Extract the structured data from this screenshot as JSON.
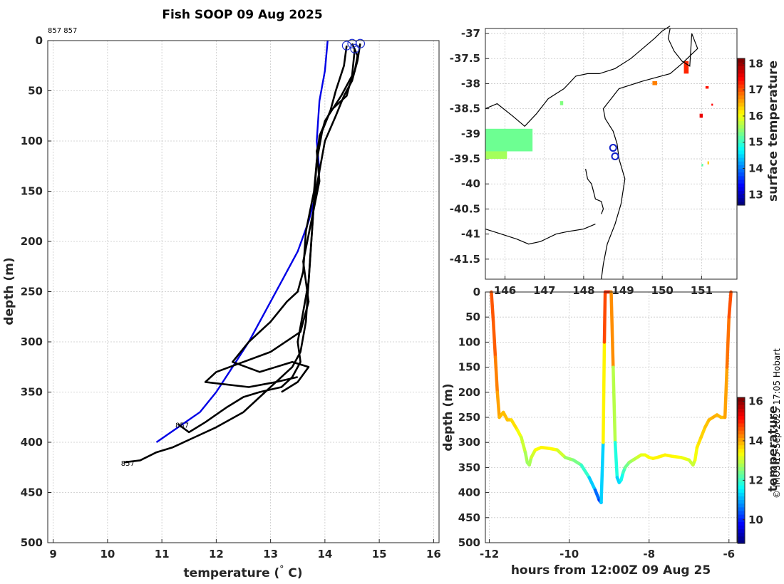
{
  "title": "Fish SOOP 09 Aug 2025",
  "credit": "© IMOS 15-Sep-2025 17:05 Hobart",
  "colors": {
    "profile": "#000000",
    "climatology": "#0000e6",
    "grid": "#c8c8c8"
  },
  "chart_data": [
    {
      "id": "profile",
      "type": "line",
      "xlabel": "temperature (° C)",
      "ylabel": "depth (m)",
      "xlim": [
        8.9,
        16.1
      ],
      "ylim": [
        0,
        500
      ],
      "y_reversed": true,
      "xticks": [
        9,
        10,
        11,
        12,
        13,
        14,
        15,
        16
      ],
      "yticks": [
        0,
        50,
        100,
        150,
        200,
        250,
        300,
        350,
        400,
        450,
        500
      ],
      "header_labels": [
        "857",
        "857"
      ],
      "series": [
        {
          "name": "climatology",
          "color": "#0000e6",
          "x": [
            14.05,
            14.0,
            13.9,
            13.85,
            13.9,
            13.85,
            13.7,
            13.5,
            13.2,
            12.9,
            12.6,
            12.3,
            12.0,
            11.7,
            11.3,
            10.9
          ],
          "y": [
            0,
            30,
            60,
            100,
            130,
            150,
            180,
            210,
            240,
            270,
            300,
            325,
            350,
            370,
            385,
            400
          ]
        },
        {
          "name": "cast-1",
          "color": "#000000",
          "end_label": "857",
          "x": [
            14.5,
            14.6,
            14.55,
            14.45,
            14.4,
            14.1,
            13.95,
            13.85,
            13.8,
            13.75,
            13.7,
            13.6,
            13.5,
            13.55,
            13.4,
            13.2,
            12.8,
            12.5,
            12.2,
            11.8,
            11.5,
            11.3
          ],
          "y": [
            3,
            15,
            30,
            45,
            55,
            70,
            90,
            120,
            160,
            200,
            240,
            270,
            300,
            320,
            335,
            345,
            350,
            355,
            365,
            380,
            390,
            382
          ]
        },
        {
          "name": "cast-2",
          "color": "#000000",
          "end_label": "857",
          "x": [
            14.65,
            14.6,
            14.5,
            14.35,
            14.2,
            14.0,
            13.9,
            13.8,
            13.75,
            13.7,
            13.65,
            13.55,
            13.4,
            13.1,
            12.8,
            12.5,
            12.0,
            11.6,
            11.2,
            10.9,
            10.6,
            10.3
          ],
          "y": [
            3,
            20,
            40,
            55,
            75,
            100,
            130,
            160,
            200,
            240,
            280,
            310,
            325,
            340,
            355,
            370,
            385,
            395,
            405,
            410,
            418,
            420
          ]
        },
        {
          "name": "cast-3",
          "color": "#000000",
          "x": [
            14.4,
            14.35,
            14.2,
            14.1,
            13.9,
            13.85,
            13.8,
            13.65,
            13.6,
            13.5,
            13.3,
            13.0,
            12.6,
            12.3,
            12.8,
            13.4,
            13.7,
            13.5,
            13.2
          ],
          "y": [
            5,
            25,
            50,
            70,
            95,
            120,
            150,
            190,
            230,
            250,
            260,
            280,
            300,
            320,
            330,
            320,
            325,
            340,
            350
          ]
        },
        {
          "name": "cast-4",
          "color": "#000000",
          "x": [
            14.55,
            14.5,
            14.3,
            14.0,
            13.85,
            13.9,
            13.75,
            13.6,
            13.7,
            13.55,
            13.0,
            12.5,
            12.0,
            11.8,
            12.6,
            13.1,
            13.5
          ],
          "y": [
            8,
            35,
            55,
            80,
            110,
            140,
            180,
            220,
            260,
            290,
            310,
            320,
            330,
            340,
            345,
            340,
            335
          ]
        }
      ]
    },
    {
      "id": "map",
      "type": "scatter",
      "xlabel": "",
      "ylabel": "",
      "xlim": [
        145.5,
        151.9
      ],
      "ylim": [
        -41.9,
        -36.9
      ],
      "xticks": [
        146,
        147,
        148,
        149,
        150,
        151
      ],
      "yticks": [
        -37,
        -37.5,
        -38,
        -38.5,
        -39,
        -39.5,
        -40,
        -40.5,
        -41,
        -41.5
      ],
      "colorbar": {
        "label": "surface temperature",
        "range": [
          12.6,
          18.2
        ],
        "ticks": [
          13,
          14,
          15,
          16,
          17,
          18
        ]
      },
      "coastlines": [
        {
          "name": "victoria-coast",
          "lon": [
            145.5,
            145.8,
            146.2,
            146.5,
            146.8,
            147.1,
            147.5,
            147.8,
            148.1,
            148.4,
            148.8,
            149.2,
            149.5,
            149.8,
            150.0,
            150.1,
            150.2
          ],
          "lat": [
            -38.5,
            -38.4,
            -38.65,
            -38.85,
            -38.6,
            -38.3,
            -38.1,
            -37.85,
            -37.8,
            -37.8,
            -37.7,
            -37.5,
            -37.3,
            -37.1,
            -36.95,
            -36.9,
            -36.85
          ]
        },
        {
          "name": "east-coast",
          "lon": [
            150.2,
            150.15,
            150.3,
            150.5,
            150.7,
            150.75
          ],
          "lat": [
            -36.9,
            -37.1,
            -37.35,
            -37.55,
            -37.65,
            -37.0
          ]
        },
        {
          "name": "boundary-east",
          "lon": [
            150.75,
            150.9,
            150.5,
            150.2,
            149.5,
            148.9,
            148.5,
            148.55,
            148.75,
            148.85,
            148.9,
            149.05,
            148.95,
            148.8,
            148.6,
            148.5,
            148.45
          ],
          "lat": [
            -37.0,
            -37.3,
            -37.6,
            -37.8,
            -37.95,
            -38.1,
            -38.5,
            -38.7,
            -38.95,
            -39.2,
            -39.5,
            -39.9,
            -40.4,
            -40.8,
            -41.2,
            -41.6,
            -41.9
          ]
        },
        {
          "name": "boundary-west",
          "lon": [
            145.5,
            145.9,
            146.3,
            146.6,
            146.9,
            147.3,
            147.6,
            148.0,
            148.3
          ],
          "lat": [
            -40.9,
            -41.0,
            -41.1,
            -41.2,
            -41.15,
            -41.0,
            -40.95,
            -40.9,
            -40.8
          ]
        },
        {
          "name": "islands-line",
          "lon": [
            148.05,
            148.1,
            148.2,
            148.25,
            148.3,
            148.45,
            148.5,
            148.45
          ],
          "lat": [
            -39.7,
            -39.9,
            -40.0,
            -40.15,
            -40.3,
            -40.35,
            -40.5,
            -40.6
          ]
        }
      ],
      "markers": [
        {
          "lon": 148.75,
          "lat": -39.28
        },
        {
          "lon": 148.8,
          "lat": -39.45
        }
      ],
      "sst_patches": [
        {
          "lon": 145.5,
          "lat": -38.9,
          "w": 1.2,
          "h": 0.45,
          "value": 15.3
        },
        {
          "lon": 145.5,
          "lat": -39.35,
          "w": 0.55,
          "h": 0.15,
          "value": 15.6
        },
        {
          "lon": 147.4,
          "lat": -38.35,
          "w": 0.08,
          "h": 0.08,
          "value": 15.4
        },
        {
          "lon": 149.75,
          "lat": -37.95,
          "w": 0.12,
          "h": 0.08,
          "value": 16.8
        },
        {
          "lon": 150.55,
          "lat": -37.55,
          "w": 0.12,
          "h": 0.25,
          "value": 17.3
        },
        {
          "lon": 151.1,
          "lat": -38.05,
          "w": 0.08,
          "h": 0.05,
          "value": 17.4
        },
        {
          "lon": 150.95,
          "lat": -38.6,
          "w": 0.08,
          "h": 0.08,
          "value": 17.6
        },
        {
          "lon": 151.25,
          "lat": -38.4,
          "w": 0.04,
          "h": 0.04,
          "value": 17.5
        },
        {
          "lon": 151.15,
          "lat": -39.55,
          "w": 0.04,
          "h": 0.06,
          "value": 16.4
        },
        {
          "lon": 151.0,
          "lat": -39.6,
          "w": 0.04,
          "h": 0.05,
          "value": 15.2
        }
      ]
    },
    {
      "id": "track",
      "type": "scatter",
      "xlabel": "hours from 12:00Z 09 Aug 25",
      "ylabel": "depth (m)",
      "xlim": [
        -12.1,
        -5.8
      ],
      "ylim": [
        0,
        500
      ],
      "y_reversed": true,
      "xticks": [
        -12,
        -10,
        -8,
        -6
      ],
      "yticks": [
        0,
        50,
        100,
        150,
        200,
        250,
        300,
        350,
        400,
        450,
        500
      ],
      "colorbar": {
        "label": "temperature",
        "range": [
          8.8,
          16.2
        ],
        "ticks": [
          10,
          12,
          14,
          16
        ]
      },
      "x": [
        -11.95,
        -11.9,
        -11.85,
        -11.8,
        -11.75,
        -11.7,
        -11.65,
        -11.55,
        -11.45,
        -11.3,
        -11.2,
        -11.1,
        -11.05,
        -11.0,
        -10.95,
        -10.85,
        -10.7,
        -10.5,
        -10.3,
        -10.1,
        -9.9,
        -9.7,
        -9.5,
        -9.35,
        -9.25,
        -9.2,
        -9.15,
        -9.12,
        -9.1,
        -8.95,
        -8.9,
        -8.85,
        -8.8,
        -8.75,
        -8.7,
        -8.65,
        -8.6,
        -8.5,
        -8.4,
        -8.3,
        -8.2,
        -8.1,
        -8.0,
        -7.9,
        -7.8,
        -7.6,
        -7.4,
        -7.2,
        -7.0,
        -6.9,
        -6.85,
        -6.8,
        -6.75,
        -6.7,
        -6.6,
        -6.5,
        -6.4,
        -6.3,
        -6.2,
        -6.1,
        -6.05,
        -6.0,
        -5.95
      ],
      "y": [
        0,
        60,
        130,
        200,
        250,
        245,
        240,
        255,
        255,
        275,
        290,
        320,
        340,
        345,
        330,
        315,
        310,
        312,
        315,
        330,
        335,
        345,
        370,
        395,
        415,
        420,
        300,
        100,
        0,
        0,
        150,
        300,
        370,
        380,
        375,
        360,
        350,
        340,
        335,
        330,
        325,
        325,
        330,
        332,
        330,
        325,
        328,
        330,
        335,
        345,
        335,
        310,
        300,
        290,
        270,
        255,
        250,
        245,
        250,
        250,
        150,
        50,
        0
      ],
      "values": [
        14.6,
        14.7,
        14.5,
        14.2,
        14.0,
        13.9,
        13.9,
        13.9,
        13.8,
        13.5,
        13.2,
        12.9,
        12.7,
        12.7,
        12.9,
        13.3,
        13.5,
        13.5,
        13.4,
        12.8,
        12.6,
        12.3,
        11.6,
        10.8,
        10.2,
        10.0,
        12.5,
        14.5,
        15.0,
        15.0,
        13.5,
        12.3,
        11.3,
        11.2,
        11.5,
        11.9,
        12.2,
        12.6,
        12.8,
        13.0,
        13.2,
        13.3,
        13.4,
        13.5,
        13.5,
        13.5,
        13.5,
        13.4,
        13.2,
        12.9,
        13.2,
        13.5,
        13.6,
        13.7,
        13.8,
        13.9,
        14.0,
        14.0,
        13.9,
        13.9,
        14.3,
        14.6,
        14.8
      ]
    }
  ]
}
